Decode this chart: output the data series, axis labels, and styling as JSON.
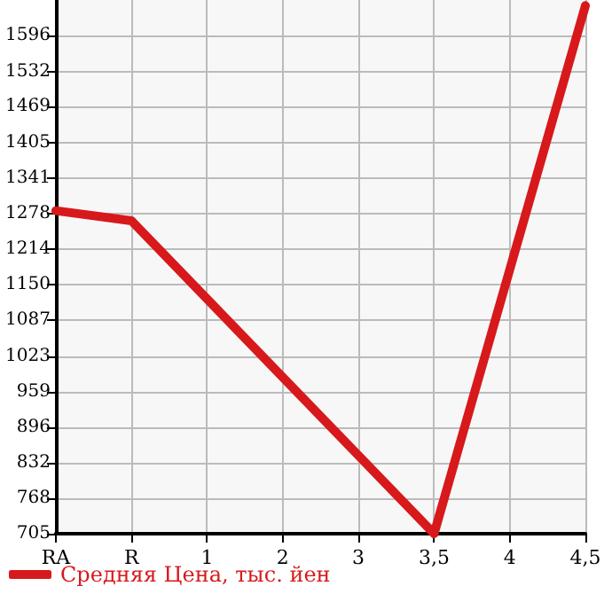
{
  "chart_data": {
    "type": "line",
    "categories": [
      "RA",
      "R",
      "1",
      "2",
      "3",
      "3,5",
      "4",
      "4,5"
    ],
    "series": [
      {
        "name": "Средняя Цена, тыс. йен",
        "color": "#d7191c",
        "values": [
          1283,
          1265,
          null,
          null,
          null,
          705,
          null,
          1650
        ]
      }
    ],
    "ylim": [
      705,
      1660
    ],
    "yticks": [
      705,
      768,
      832,
      896,
      959,
      1023,
      1087,
      1150,
      1214,
      1278,
      1341,
      1405,
      1469,
      1532,
      1596
    ],
    "grid": true,
    "legend": "bottom left",
    "marker": "none",
    "line_style": "solid"
  }
}
